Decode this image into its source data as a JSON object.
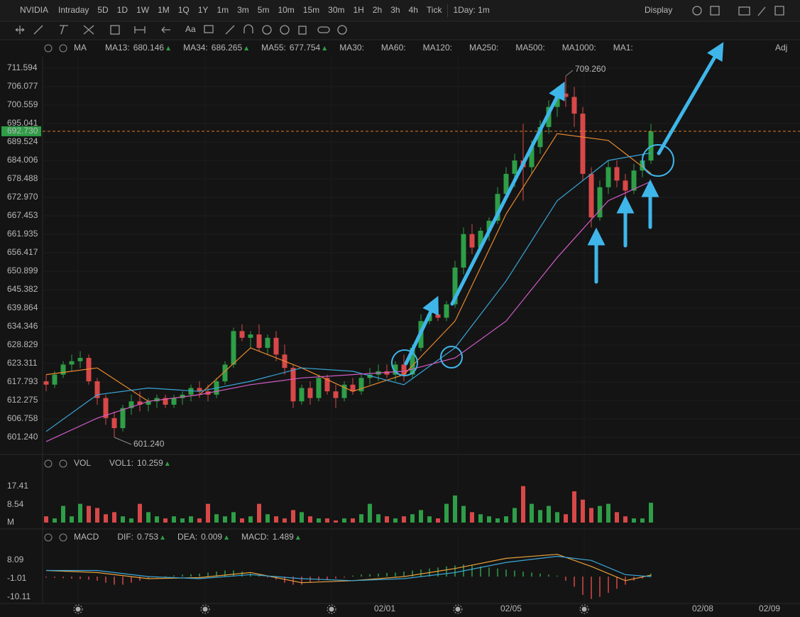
{
  "toolbar": {
    "symbol": "NVIDIA",
    "periods": [
      "Intraday",
      "5D",
      "1D",
      "1W",
      "1M",
      "1Q",
      "1Y",
      "1m",
      "3m",
      "5m",
      "10m",
      "15m",
      "30m",
      "1H",
      "2h",
      "3h",
      "4h",
      "Tick"
    ],
    "selected": "1H",
    "range": "1Day: 1m",
    "display": "Display",
    "text_tool": "Aa"
  },
  "chart_data": [
    {
      "type": "candlestick",
      "indicator": "MA",
      "adj": "Adj",
      "up_color": "#2e9e47",
      "down_color": "#d84848",
      "grid": true,
      "candles": [
        [
          618,
          620,
          615,
          617
        ],
        [
          617,
          621,
          616,
          620
        ],
        [
          620,
          624,
          619,
          623
        ],
        [
          623,
          626,
          621,
          624
        ],
        [
          624,
          627,
          622,
          625
        ],
        [
          625,
          626,
          617,
          618
        ],
        [
          618,
          619,
          611,
          613
        ],
        [
          613,
          614,
          605,
          607
        ],
        [
          607,
          609,
          601.24,
          604
        ],
        [
          604,
          611,
          603,
          610
        ],
        [
          610,
          614,
          608,
          612
        ],
        [
          612,
          615,
          609,
          611
        ],
        [
          611,
          613,
          609,
          612
        ],
        [
          612,
          614,
          610,
          613
        ],
        [
          613,
          614,
          610,
          611
        ],
        [
          611,
          614,
          610,
          613
        ],
        [
          613,
          615,
          611,
          614
        ],
        [
          614,
          617,
          612,
          616
        ],
        [
          616,
          618,
          613,
          615
        ],
        [
          615,
          617,
          612,
          614
        ],
        [
          614,
          619,
          613,
          618
        ],
        [
          618,
          624,
          617,
          623
        ],
        [
          623,
          634,
          622,
          633
        ],
        [
          633,
          635,
          630,
          631
        ],
        [
          631,
          633,
          628,
          632
        ],
        [
          632,
          635,
          627,
          628
        ],
        [
          628,
          632,
          626,
          631
        ],
        [
          631,
          633,
          624,
          626
        ],
        [
          626,
          629,
          620,
          622
        ],
        [
          622,
          623,
          610,
          612
        ],
        [
          612,
          617,
          611,
          616
        ],
        [
          616,
          618,
          611,
          613
        ],
        [
          613,
          620,
          612,
          619
        ],
        [
          619,
          620,
          614,
          615
        ],
        [
          615,
          617,
          610,
          613
        ],
        [
          613,
          618,
          612,
          617
        ],
        [
          617,
          619,
          614,
          615
        ],
        [
          615,
          620,
          614,
          619
        ],
        [
          619,
          622,
          617,
          620
        ],
        [
          620,
          623,
          618,
          621
        ],
        [
          621,
          623,
          619,
          620
        ],
        [
          620,
          624,
          618,
          623
        ],
        [
          623,
          626,
          618,
          620
        ],
        [
          620,
          629,
          619,
          628
        ],
        [
          628,
          638,
          627,
          636
        ],
        [
          636,
          640,
          635,
          638
        ],
        [
          638,
          641,
          636,
          637
        ],
        [
          637,
          642,
          636,
          641
        ],
        [
          641,
          654,
          640,
          652
        ],
        [
          652,
          664,
          650,
          662
        ],
        [
          662,
          665,
          656,
          658
        ],
        [
          658,
          664,
          657,
          663
        ],
        [
          663,
          667,
          660,
          666
        ],
        [
          666,
          676,
          665,
          674
        ],
        [
          674,
          682,
          672,
          680
        ],
        [
          680,
          686,
          676,
          684
        ],
        [
          684,
          695,
          672,
          682
        ],
        [
          682,
          690,
          680,
          688
        ],
        [
          688,
          696,
          686,
          694
        ],
        [
          694,
          702,
          692,
          700
        ],
        [
          700,
          706,
          697,
          704
        ],
        [
          704,
          709.26,
          700,
          703
        ],
        [
          703,
          706,
          694,
          698
        ],
        [
          698,
          700,
          678,
          680
        ],
        [
          680,
          682,
          664,
          667
        ],
        [
          667,
          678,
          666,
          676
        ],
        [
          676,
          684,
          674,
          682
        ],
        [
          682,
          684,
          676,
          678
        ],
        [
          678,
          680,
          673,
          675
        ],
        [
          675,
          683,
          674,
          681
        ],
        [
          681,
          686,
          679,
          684
        ],
        [
          684,
          695,
          683,
          692.73
        ]
      ],
      "series": [
        {
          "name": "MA13:",
          "current": 680.146,
          "color": "#e8892c",
          "x": [
            0,
            6,
            12,
            18,
            24,
            30,
            36,
            42,
            48,
            54,
            60,
            66,
            71
          ],
          "values": [
            620,
            622,
            612,
            614,
            628,
            622,
            615,
            620,
            636,
            668,
            692,
            690,
            680.146
          ]
        },
        {
          "name": "MA34:",
          "current": 686.265,
          "color": "#3aa6d8",
          "x": [
            0,
            6,
            12,
            18,
            24,
            30,
            36,
            42,
            48,
            54,
            60,
            66,
            71
          ],
          "values": [
            603,
            614,
            616,
            615,
            618,
            622,
            621,
            617,
            628,
            648,
            672,
            684,
            686.265
          ]
        },
        {
          "name": "MA55:",
          "current": 677.754,
          "color": "#d25cc8",
          "x": [
            0,
            6,
            12,
            18,
            24,
            30,
            36,
            42,
            48,
            54,
            60,
            66,
            71
          ],
          "values": [
            600,
            607,
            612,
            614,
            617,
            619,
            620,
            621,
            625,
            636,
            655,
            672,
            677.754
          ]
        }
      ],
      "inactive_series": [
        {
          "name": "MA30:",
          "color": "#2d5a92"
        },
        {
          "name": "MA60:",
          "color": "#2a7d8c"
        },
        {
          "name": "MA120:",
          "color": "#2f6f8f"
        },
        {
          "name": "MA250:",
          "color": "#8a3a3a"
        },
        {
          "name": "MA500:",
          "color": "#9a6a22"
        },
        {
          "name": "MA1000:",
          "color": "#6a3a8a"
        },
        {
          "name": "MA1:",
          "color": "#666666"
        }
      ],
      "high_label": {
        "value": 709.26,
        "label": "709.260"
      },
      "low_label": {
        "value": 601.24,
        "label": "601.240"
      },
      "last_price": {
        "value": 692.73,
        "label": "692.730",
        "color": "#e07b24"
      },
      "ylim": [
        596.15,
        714.99
      ],
      "yticks": [
        711.594,
        706.077,
        700.559,
        695.041,
        689.524,
        684.006,
        678.488,
        {
          "value": 672.97,
          "label": "672.970"
        },
        667.453,
        661.935,
        656.417,
        650.899,
        645.382,
        639.864,
        634.346,
        628.829,
        623.311,
        617.793,
        612.275,
        606.758,
        {
          "value": 601.24,
          "label": "601.240"
        }
      ],
      "xlim": [
        -0.25,
        87.25
      ],
      "xticks": [
        {
          "value": 39.75,
          "label": "02/01"
        },
        {
          "value": 54.58,
          "label": "02/05"
        },
        {
          "value": 77.08,
          "label": "02/08"
        },
        {
          "value": 84.92,
          "label": "02/09"
        }
      ]
    },
    {
      "type": "bar",
      "indicator": "VOL",
      "series": [
        {
          "name": "VOL1:",
          "current": 10.259,
          "color": "#e0504f"
        }
      ],
      "values": [
        3,
        2,
        8,
        3,
        9,
        8,
        7,
        4,
        5,
        3,
        2,
        9,
        5,
        3,
        2,
        3,
        2,
        3,
        2,
        9,
        4,
        3,
        5,
        2,
        3,
        9,
        4,
        3,
        2,
        6,
        5,
        3,
        2,
        2,
        1,
        2,
        2,
        4,
        9,
        4,
        3,
        2,
        3,
        4,
        6,
        3,
        2,
        9,
        13,
        8,
        5,
        4,
        3,
        2,
        3,
        7,
        17.5,
        9,
        6,
        8,
        5,
        4,
        15,
        11,
        7,
        8,
        9,
        5,
        3,
        2,
        2,
        9.5
      ],
      "ylim": [
        0,
        24.2
      ],
      "yticks": [
        {
          "value": 0,
          "label": "M"
        },
        8.54,
        17.41
      ]
    },
    {
      "type": "macd",
      "indicator": "MACD",
      "series": [
        {
          "name": "DIF:",
          "current": 0.753,
          "color": "#e8a03c",
          "x": [
            0,
            6,
            12,
            18,
            24,
            30,
            36,
            42,
            48,
            54,
            60,
            64,
            68,
            71
          ],
          "values": [
            3,
            2,
            -1,
            -0.5,
            2,
            -3,
            -2,
            0,
            4,
            9,
            11,
            5,
            -2,
            0.753
          ]
        },
        {
          "name": "DEA:",
          "current": 0.009,
          "color": "#3ba7d8",
          "x": [
            0,
            6,
            12,
            18,
            24,
            30,
            36,
            42,
            48,
            54,
            60,
            64,
            68,
            71
          ],
          "values": [
            3,
            3,
            0,
            -1,
            1,
            -1,
            -2,
            -1,
            2,
            7,
            10,
            8,
            1,
            0.009
          ]
        }
      ],
      "histogram": {
        "name": "MACD:",
        "current": 1.489,
        "color": "#d35ad3",
        "values": [
          -0.5,
          -0.6,
          -0.8,
          -1,
          -1.2,
          -1.5,
          -2,
          -3,
          -4,
          -4,
          -3,
          -2,
          -1,
          -0.5,
          0.3,
          0.6,
          1,
          1.2,
          1.5,
          2,
          2.5,
          3,
          3,
          2.5,
          1.5,
          0.5,
          -0.5,
          -1.5,
          -3,
          -4,
          -4,
          -3,
          -2,
          -1.5,
          -1,
          -0.5,
          0.5,
          1,
          1.2,
          1.5,
          1.8,
          2,
          2.5,
          3,
          3.5,
          4,
          4.5,
          5,
          5.5,
          6,
          5.5,
          5,
          4.5,
          4,
          3.5,
          3,
          2.5,
          2,
          1.5,
          1,
          0.5,
          -2,
          -5,
          -9,
          -11,
          -10,
          -8,
          -6,
          -4,
          -2,
          -1,
          1.489
        ]
      },
      "ylim": [
        -13.26,
        14.74
      ],
      "yticks": [
        8.09,
        -1.01,
        -10.11
      ]
    }
  ]
}
